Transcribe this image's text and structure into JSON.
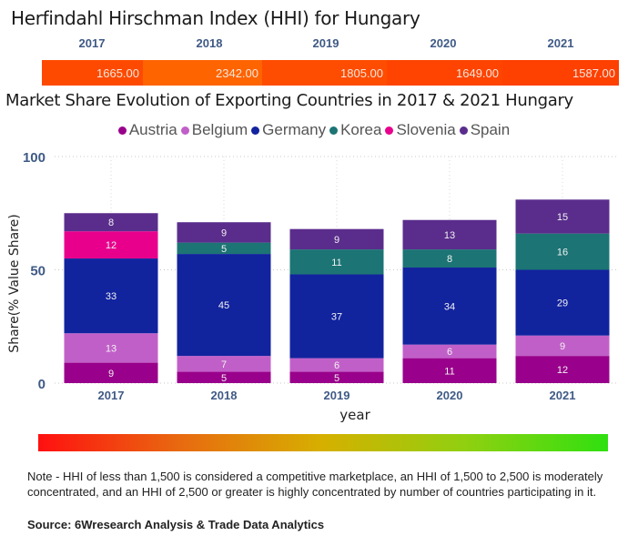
{
  "hhi": {
    "title": "Herfindahl Hirschman Index (HHI) for Hungary",
    "years": [
      "2017",
      "2018",
      "2019",
      "2020",
      "2021"
    ],
    "values": [
      "1665.00",
      "2342.00",
      "1805.00",
      "1649.00",
      "1587.00"
    ],
    "colors": [
      "#fe4a00",
      "#fe6400",
      "#fe4c00",
      "#fe4400",
      "#fe4000"
    ]
  },
  "gradient_scale": {
    "from_color": "#ff1010",
    "to_color": "#30e010"
  },
  "note": "Note - HHI of less than 1,500 is considered a competitive marketplace, an HHI of 1,500 to 2,500 is moderately concentrated, and an HHI of 2,500 or greater is highly concentrated by number of countries participating in it.",
  "source": "Source: 6Wresearch Analysis & Trade Data Analytics",
  "chart_data": {
    "type": "bar",
    "stacked": true,
    "title": "Market Share Evolution of Exporting Countries in 2017 & 2021 Hungary",
    "xlabel": "year",
    "ylabel": "Share(% Value Share)",
    "ylim": [
      0,
      100
    ],
    "yticks": [
      "0",
      "50",
      "100"
    ],
    "grid": true,
    "legend_position": "top-center",
    "categories": [
      "2017",
      "2018",
      "2019",
      "2020",
      "2021"
    ],
    "series": [
      {
        "name": "Austria",
        "color": "#99008b",
        "values": [
          9,
          5,
          5,
          11,
          12
        ]
      },
      {
        "name": "Belgium",
        "color": "#c15fc8",
        "values": [
          13,
          7,
          6,
          6,
          9
        ]
      },
      {
        "name": "Germany",
        "color": "#12239e",
        "values": [
          33,
          45,
          37,
          34,
          29
        ]
      },
      {
        "name": "Korea",
        "color": "#1c7474",
        "values": [
          0,
          5,
          11,
          8,
          16
        ]
      },
      {
        "name": "Slovenia",
        "color": "#e8008c",
        "values": [
          12,
          0,
          0,
          0,
          0
        ]
      },
      {
        "name": "Spain",
        "color": "#5a2d8c",
        "values": [
          8,
          9,
          9,
          13,
          15
        ]
      }
    ]
  }
}
